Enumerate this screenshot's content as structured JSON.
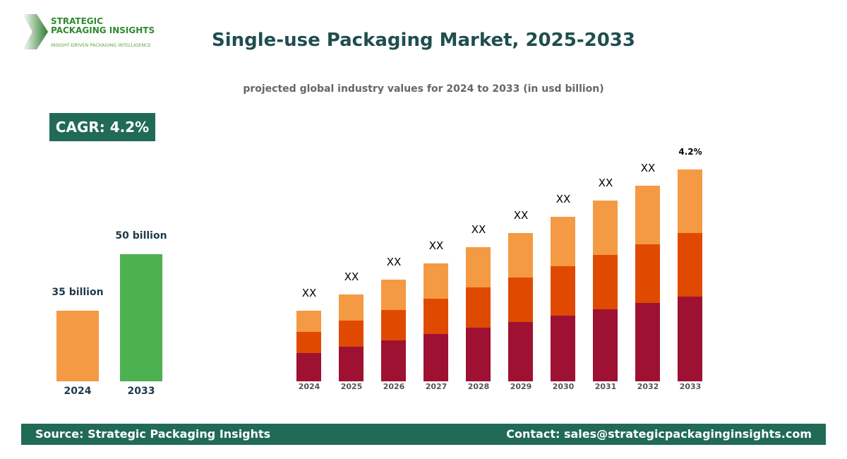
{
  "logo": {
    "name_line1": "STRATEGIC",
    "name_line2": "PACKAGING INSIGHTS",
    "tagline": "INSIGHT-DRIVEN PACKAGING INTELLIGENCE"
  },
  "cagr_badge": "CAGR: 4.2%",
  "footer": {
    "source": "Source: Strategic Packaging Insights",
    "contact": "Contact: sales@strategicpackaginginsights.com"
  },
  "colors": {
    "brand": "#216a55",
    "title": "#1f4e4f",
    "seg_bottom": "#9e1133",
    "seg_mid": "#e04a00",
    "seg_top": "#f49a44",
    "bar_2024": "#f49a44",
    "bar_2033": "#4db150"
  },
  "chart_data": [
    {
      "type": "bar",
      "title": "Single-use Packaging Market, 2025-2033",
      "subtitle": "projected global industry values for 2024 to 2033 (in usd billion)",
      "categories": [
        "2024",
        "2033"
      ],
      "values": [
        35,
        50
      ],
      "data_labels": [
        "35 billion",
        "50 billion"
      ],
      "grid": false
    },
    {
      "type": "bar",
      "stacked": true,
      "categories": [
        "2024",
        "2025",
        "2026",
        "2027",
        "2028",
        "2029",
        "2030",
        "2031",
        "2032",
        "2033"
      ],
      "series": [
        {
          "values": [
            40,
            49,
            58,
            67,
            76,
            84,
            93,
            102,
            111,
            120
          ]
        },
        {
          "values": [
            30,
            37,
            43,
            50,
            57,
            63,
            70,
            77,
            83,
            90
          ]
        },
        {
          "values": [
            30,
            37,
            43,
            50,
            57,
            63,
            70,
            77,
            83,
            90
          ]
        }
      ],
      "data_labels": [
        "XX",
        "XX",
        "XX",
        "XX",
        "XX",
        "XX",
        "XX",
        "XX",
        "XX",
        "4.2%"
      ],
      "grid": false,
      "note_values_relative": true
    }
  ]
}
